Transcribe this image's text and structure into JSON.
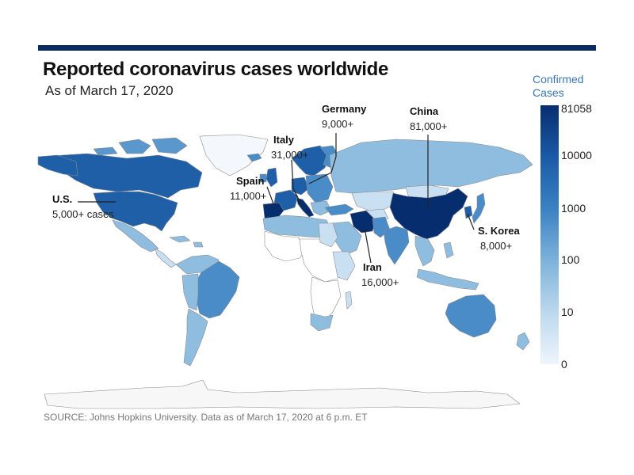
{
  "header": {
    "title": "Reported coronavirus cases worldwide",
    "subtitle": "As of March 17, 2020"
  },
  "legend": {
    "title_line1": "Confirmed",
    "title_line2": "Cases",
    "ticks": [
      "81058",
      "10000",
      "1000",
      "100",
      "10",
      "0"
    ],
    "max_color": "#062e6f",
    "min_color": "#eef5fc"
  },
  "callouts": {
    "germany": {
      "name": "Germany",
      "value": "9,000+"
    },
    "china": {
      "name": "China",
      "value": "81,000+"
    },
    "italy": {
      "name": "Italy",
      "value": "31,000+"
    },
    "spain": {
      "name": "Spain",
      "value": "11,000+"
    },
    "us": {
      "name": "U.S.",
      "value": "5,000+ cases"
    },
    "skorea": {
      "name": "S. Korea",
      "value": "8,000+"
    },
    "iran": {
      "name": "Iran",
      "value": "16,000+"
    }
  },
  "source": "SOURCE: Johns Hopkins University. Data as of March 17, 2020 at 6 p.m. ET",
  "colors": {
    "rule": "#0b2a5e",
    "darkest": "#062e6f",
    "dark": "#1f5fa8",
    "mid": "#4a8cc8",
    "light": "#8fbde0",
    "pale": "#c9e0f2",
    "none": "#ffffff"
  }
}
